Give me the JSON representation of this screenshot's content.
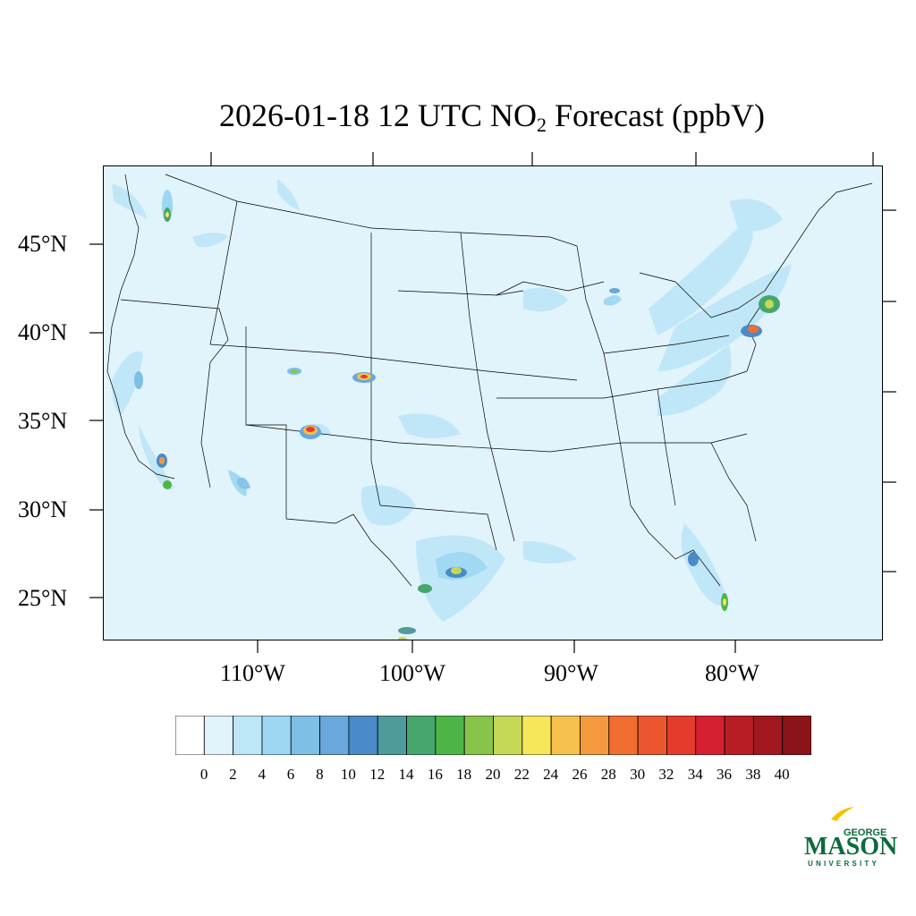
{
  "title": {
    "prefix": "2026-01-18 12 UTC NO",
    "subscript": "2",
    "suffix": " Forecast (ppbV)"
  },
  "axes": {
    "latitude_labels": [
      "45°N",
      "40°N",
      "35°N",
      "30°N",
      "25°N"
    ],
    "longitude_labels": [
      "110°W",
      "100°W",
      "90°W",
      "80°W"
    ]
  },
  "colorbar": {
    "tick_labels": [
      "0",
      "2",
      "4",
      "6",
      "8",
      "10",
      "12",
      "14",
      "16",
      "18",
      "20",
      "22",
      "24",
      "26",
      "28",
      "30",
      "32",
      "34",
      "36",
      "38",
      "40"
    ],
    "colors": [
      "#ffffff",
      "#e1f3fb",
      "#bde6f7",
      "#9bd7f3",
      "#7fbfe5",
      "#68a8dc",
      "#4a8ac8",
      "#4f9b9b",
      "#47a66b",
      "#4db548",
      "#86c44a",
      "#c5d855",
      "#f6e659",
      "#f6c04c",
      "#f4993e",
      "#f06e30",
      "#eb5530",
      "#e53b2c",
      "#d42030",
      "#b81c25",
      "#a0181e",
      "#8a1418"
    ]
  },
  "logo": {
    "line1": "GEORGE",
    "line2": "MASON",
    "line3": "UNIVERSITY",
    "brand_green": "#0b6b3a",
    "brand_gold": "#f2c400"
  },
  "map_colors": {
    "background": "#e1f3fb",
    "level_2": "#bde6f7",
    "level_4": "#9bd7f3",
    "level_8": "#7fbfe5"
  }
}
